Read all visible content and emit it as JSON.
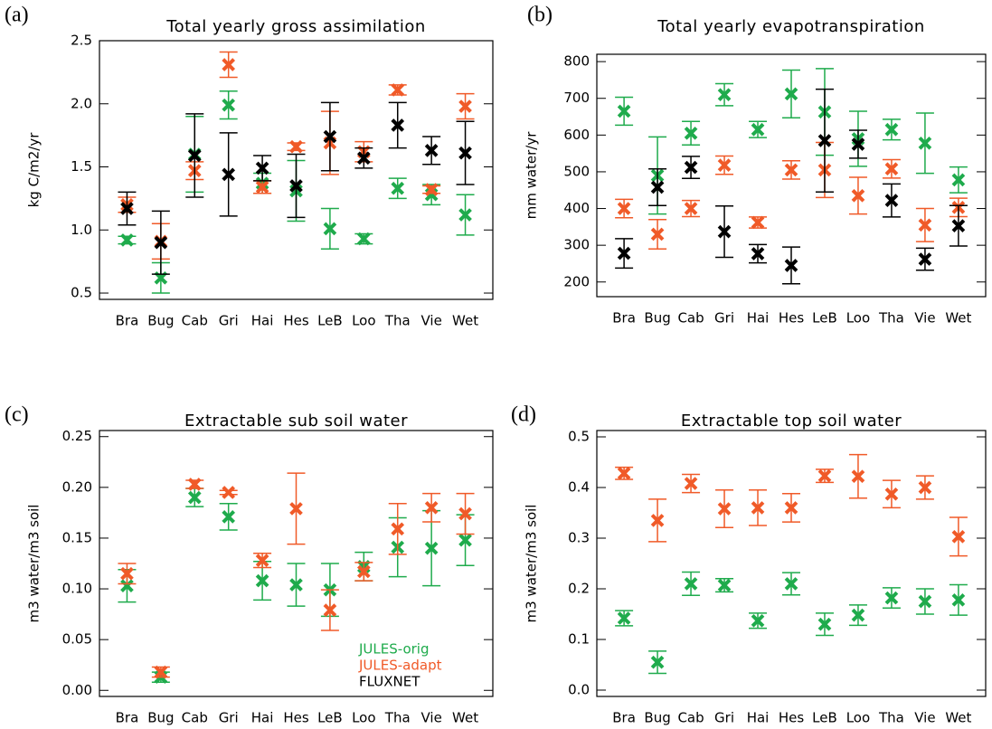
{
  "chart_data": [
    {
      "type": "errorbar",
      "label": "(a)",
      "title": "Total yearly gross assimilation",
      "y_label": "kg C/m2/yr",
      "categories": [
        "Bra",
        "Bug",
        "Cab",
        "Gri",
        "Hai",
        "Hes",
        "LeB",
        "Loo",
        "Tha",
        "Vie",
        "Wet"
      ],
      "ylim": [
        0.45,
        2.5
      ],
      "yticks": [
        0.5,
        {
          "value": 1.0,
          "label": "1.0"
        },
        1.5,
        {
          "value": 2.0,
          "label": "2.0"
        },
        2.5
      ],
      "series": [
        {
          "color": "#1fab4c",
          "values": [
            0.92,
            0.62,
            1.6,
            1.99,
            1.37,
            1.31,
            1.01,
            0.93,
            1.33,
            1.28,
            1.12
          ],
          "errors": [
            0.03,
            0.12,
            0.3,
            0.11,
            0.08,
            0.24,
            0.16,
            0.04,
            0.08,
            0.08,
            0.16
          ]
        },
        {
          "color": "#f05a28",
          "values": [
            1.2,
            0.91,
            1.47,
            2.31,
            1.34,
            1.66,
            1.69,
            1.62,
            2.11,
            1.32,
            1.98
          ],
          "errors": [
            0.06,
            0.14,
            0.07,
            0.1,
            0.05,
            0.03,
            0.25,
            0.08,
            0.04,
            0.03,
            0.1
          ]
        },
        {
          "color": "#000000",
          "values": [
            1.17,
            0.9,
            1.59,
            1.44,
            1.49,
            1.35,
            1.74,
            1.57,
            1.83,
            1.63,
            1.61
          ],
          "errors": [
            0.13,
            0.25,
            0.33,
            0.33,
            0.1,
            0.25,
            0.27,
            0.08,
            0.18,
            0.11,
            0.25
          ]
        }
      ]
    },
    {
      "type": "errorbar",
      "label": "(b)",
      "title": "Total yearly evapotranspiration",
      "y_label": "mm water/yr",
      "categories": [
        "Bra",
        "Bug",
        "Cab",
        "Gri",
        "Hai",
        "Hes",
        "LeB",
        "Loo",
        "Tha",
        "Vie",
        "Wet"
      ],
      "ylim": [
        160,
        820
      ],
      "yticks": [
        200,
        300,
        400,
        500,
        600,
        700,
        800
      ],
      "series": [
        {
          "color": "#1fab4c",
          "values": [
            665,
            490,
            605,
            710,
            615,
            712,
            663,
            590,
            615,
            578,
            478
          ],
          "errors": [
            38,
            105,
            32,
            30,
            22,
            65,
            118,
            75,
            28,
            82,
            35
          ]
        },
        {
          "color": "#f05a28",
          "values": [
            400,
            330,
            400,
            518,
            362,
            505,
            505,
            435,
            508,
            355,
            403
          ],
          "errors": [
            25,
            40,
            22,
            25,
            15,
            25,
            75,
            50,
            25,
            45,
            25
          ]
        },
        {
          "color": "#000000",
          "values": [
            278,
            458,
            512,
            337,
            277,
            245,
            585,
            575,
            422,
            262,
            353
          ],
          "errors": [
            40,
            50,
            30,
            70,
            25,
            50,
            140,
            38,
            45,
            30,
            55
          ]
        }
      ]
    },
    {
      "type": "errorbar",
      "label": "(c)",
      "title": "Extractable sub soil water",
      "y_label": "m3 water/m3 soil",
      "categories": [
        "Bra",
        "Bug",
        "Cab",
        "Gri",
        "Hai",
        "Hes",
        "LeB",
        "Loo",
        "Tha",
        "Vie",
        "Wet"
      ],
      "ylim": [
        -0.006,
        0.256
      ],
      "yticks": [
        {
          "value": 0.0,
          "label": "0.00"
        },
        0.05,
        {
          "value": 0.1,
          "label": "0.10"
        },
        0.15,
        {
          "value": 0.2,
          "label": "0.20"
        },
        0.25
      ],
      "legend": "lower right",
      "series": [
        {
          "name": "JULES-orig",
          "color": "#1fab4c",
          "values": [
            0.103,
            0.013,
            0.19,
            0.171,
            0.108,
            0.104,
            0.099,
            0.122,
            0.141,
            0.14,
            0.148
          ],
          "errors": [
            0.016,
            0.005,
            0.009,
            0.013,
            0.019,
            0.021,
            0.026,
            0.014,
            0.029,
            0.037,
            0.025
          ]
        },
        {
          "name": "JULES-adapt",
          "color": "#f05a28",
          "values": [
            0.115,
            0.018,
            0.203,
            0.195,
            0.128,
            0.179,
            0.079,
            0.117,
            0.159,
            0.18,
            0.174
          ],
          "errors": [
            0.01,
            0.005,
            0.004,
            0.002,
            0.007,
            0.035,
            0.02,
            0.009,
            0.025,
            0.014,
            0.02
          ]
        },
        {
          "name": "FLUXNET",
          "color": "#000000",
          "values": [
            null,
            null,
            null,
            null,
            null,
            null,
            null,
            null,
            null,
            null,
            null
          ],
          "errors": [
            null,
            null,
            null,
            null,
            null,
            null,
            null,
            null,
            null,
            null,
            null
          ]
        }
      ]
    },
    {
      "type": "errorbar",
      "label": "(d)",
      "title": "Extractable top soil water",
      "y_label": "m3 water/m3 soil",
      "categories": [
        "Bra",
        "Bug",
        "Cab",
        "Gri",
        "Hai",
        "Hes",
        "LeB",
        "Loo",
        "Tha",
        "Vie",
        "Wet"
      ],
      "ylim": [
        -0.0125,
        0.5125
      ],
      "yticks": [
        {
          "value": 0.0,
          "label": "0.0"
        },
        0.1,
        0.2,
        0.3,
        0.4,
        0.5
      ],
      "series": [
        {
          "color": "#f05a28",
          "values": [
            0.428,
            0.335,
            0.408,
            0.358,
            0.36,
            0.36,
            0.423,
            0.422,
            0.387,
            0.4,
            0.303
          ],
          "errors": [
            0.012,
            0.042,
            0.018,
            0.037,
            0.035,
            0.028,
            0.013,
            0.043,
            0.027,
            0.023,
            0.038
          ]
        },
        {
          "color": "#1fab4c",
          "values": [
            0.142,
            0.055,
            0.21,
            0.207,
            0.137,
            0.21,
            0.13,
            0.148,
            0.182,
            0.175,
            0.178
          ],
          "errors": [
            0.015,
            0.022,
            0.023,
            0.013,
            0.015,
            0.022,
            0.022,
            0.02,
            0.02,
            0.025,
            0.03
          ]
        }
      ]
    }
  ]
}
